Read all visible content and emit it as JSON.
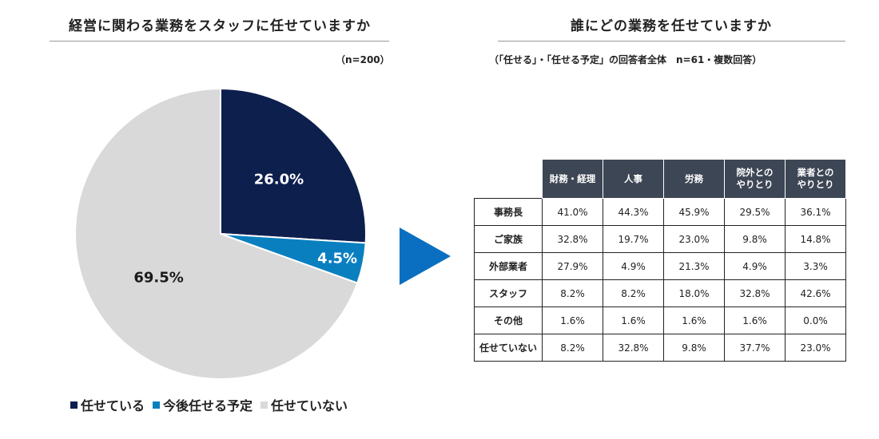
{
  "left": {
    "title": "経営に関わる業務をスタッフに任せていますか",
    "note": "（n=200）"
  },
  "right": {
    "title": "誰にどの業務を任せていますか",
    "note": "（「任せる」・「任せる予定」の回答者全体　n=61・複数回答）"
  },
  "colors": {
    "navy": "#0d1f4d",
    "blue": "#0a7fc0",
    "gray": "#d9d9d9",
    "arrow": "#0a6fc0",
    "header": "#3d4654"
  },
  "chart_data": [
    {
      "type": "pie",
      "title": "経営に関わる業務をスタッフに任せていますか",
      "labels": [
        "任せている",
        "今後任せる予定",
        "任せていない"
      ],
      "values": [
        26.0,
        4.5,
        69.5
      ],
      "data_labels": [
        "26.0%",
        "4.5%",
        "69.5%"
      ],
      "legend_position": "bottom"
    },
    {
      "type": "table",
      "title": "誰にどの業務を任せていますか",
      "columns": [
        "財務・経理",
        "人事",
        "労務",
        "院外との\nやりとり",
        "業者との\nやりとり"
      ],
      "rows": [
        {
          "label": "事務長",
          "values": [
            "41.0%",
            "44.3%",
            "45.9%",
            "29.5%",
            "36.1%"
          ]
        },
        {
          "label": "ご家族",
          "values": [
            "32.8%",
            "19.7%",
            "23.0%",
            "9.8%",
            "14.8%"
          ]
        },
        {
          "label": "外部業者",
          "values": [
            "27.9%",
            "4.9%",
            "21.3%",
            "4.9%",
            "3.3%"
          ]
        },
        {
          "label": "スタッフ",
          "values": [
            "8.2%",
            "8.2%",
            "18.0%",
            "32.8%",
            "42.6%"
          ]
        },
        {
          "label": "その他",
          "values": [
            "1.6%",
            "1.6%",
            "1.6%",
            "1.6%",
            "0.0%"
          ]
        },
        {
          "label": "任せていない",
          "values": [
            "8.2%",
            "32.8%",
            "9.8%",
            "37.7%",
            "23.0%"
          ]
        }
      ]
    }
  ]
}
